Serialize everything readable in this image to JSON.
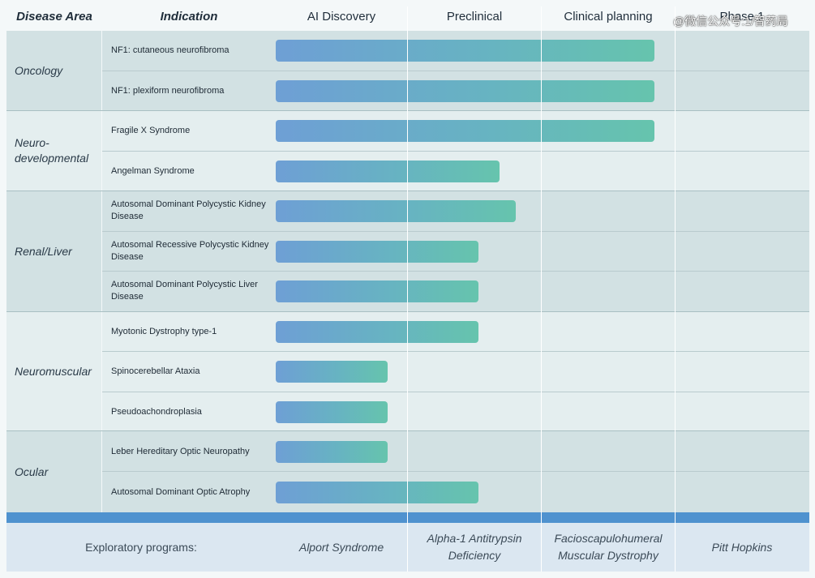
{
  "headers": {
    "disease_area": "Disease Area",
    "indication": "Indication",
    "ai_discovery": "AI Discovery",
    "preclinical": "Preclinical",
    "clinical_planning": "Clinical planning",
    "phase1": "Phase 1"
  },
  "watermark": "@微信公众号:1/智药局",
  "areas": [
    {
      "name": "Oncology"
    },
    {
      "name": "Neuro-\ndevelopmental"
    },
    {
      "name": "Renal/Liver"
    },
    {
      "name": "Neuromuscular"
    },
    {
      "name": "Ocular"
    }
  ],
  "indications": [
    {
      "label": "NF1: cutaneous neurofibroma",
      "stage": "Clinical planning"
    },
    {
      "label": "NF1: plexiform neurofibroma",
      "stage": "Clinical planning"
    },
    {
      "label": "Fragile X Syndrome",
      "stage": "Clinical planning"
    },
    {
      "label": "Angelman Syndrome",
      "stage": "Preclinical"
    },
    {
      "label": "Autosomal Dominant Polycystic Kidney Disease",
      "stage": "Preclinical"
    },
    {
      "label": "Autosomal Recessive Polycystic Kidney Disease",
      "stage": "Preclinical"
    },
    {
      "label": "Autosomal Dominant Polycystic Liver Disease",
      "stage": "Preclinical"
    },
    {
      "label": "Myotonic Dystrophy type-1",
      "stage": "Preclinical"
    },
    {
      "label": "Spinocerebellar Ataxia",
      "stage": "AI Discovery"
    },
    {
      "label": "Pseudoachondroplasia",
      "stage": "AI Discovery"
    },
    {
      "label": "Leber Hereditary Optic Neuropathy",
      "stage": "AI Discovery"
    },
    {
      "label": "Autosomal Dominant Optic Atrophy",
      "stage": "Preclinical"
    }
  ],
  "footer": {
    "label": "Exploratory programs:",
    "programs": [
      "Alport Syndrome",
      "Alpha-1 Antitrypsin Deficiency",
      "Facioscapulohumeral Muscular Dystrophy",
      "Pitt Hopkins"
    ]
  },
  "colors": {
    "bar_start": "#6e9fd5",
    "bar_end": "#66c4ad",
    "footer_band": "#4f92cf"
  }
}
